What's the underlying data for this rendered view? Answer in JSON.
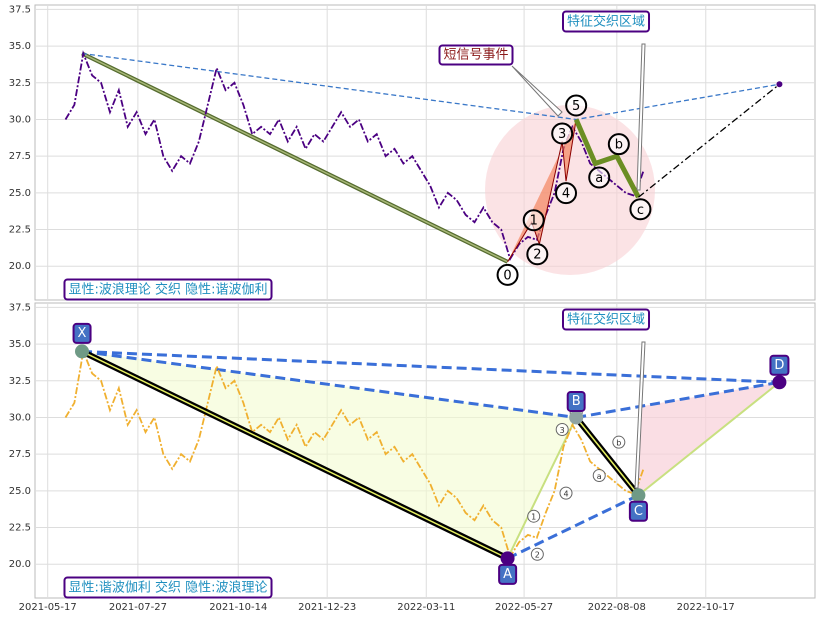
{
  "chart_data": {
    "type": "line",
    "x": [
      "2021-05-31",
      "2021-06-07",
      "2021-06-14",
      "2021-06-21",
      "2021-06-28",
      "2021-07-05",
      "2021-07-12",
      "2021-07-19",
      "2021-07-26",
      "2021-08-02",
      "2021-08-09",
      "2021-08-16",
      "2021-08-23",
      "2021-08-30",
      "2021-09-06",
      "2021-09-13",
      "2021-09-20",
      "2021-09-27",
      "2021-10-04",
      "2021-10-11",
      "2021-10-18",
      "2021-10-25",
      "2021-11-01",
      "2021-11-08",
      "2021-11-15",
      "2021-11-22",
      "2021-11-29",
      "2021-12-06",
      "2021-12-13",
      "2021-12-20",
      "2021-12-27",
      "2022-01-03",
      "2022-01-10",
      "2022-01-17",
      "2022-01-24",
      "2022-01-31",
      "2022-02-07",
      "2022-02-14",
      "2022-02-21",
      "2022-02-28",
      "2022-03-07",
      "2022-03-14",
      "2022-03-21",
      "2022-03-28",
      "2022-04-04",
      "2022-04-11",
      "2022-04-18",
      "2022-04-25",
      "2022-05-02",
      "2022-05-09",
      "2022-05-16",
      "2022-05-23",
      "2022-05-30",
      "2022-06-06",
      "2022-06-13",
      "2022-06-20",
      "2022-06-27",
      "2022-07-04",
      "2022-07-11",
      "2022-07-18",
      "2022-07-25",
      "2022-08-01",
      "2022-08-08",
      "2022-08-15",
      "2022-08-22",
      "2022-08-29"
    ],
    "values": [
      30.0,
      31.0,
      34.5,
      33.0,
      32.5,
      30.5,
      32.0,
      29.5,
      30.5,
      29.0,
      30.0,
      27.5,
      26.5,
      27.5,
      27.0,
      28.5,
      31.0,
      33.5,
      32.0,
      32.5,
      31.0,
      29.0,
      29.5,
      29.0,
      30.0,
      28.5,
      29.5,
      28.0,
      29.0,
      28.5,
      29.5,
      30.5,
      29.5,
      30.0,
      28.5,
      29.0,
      27.5,
      28.0,
      27.0,
      27.5,
      26.5,
      25.5,
      24.0,
      25.0,
      24.5,
      23.5,
      23.0,
      24.0,
      23.0,
      22.5,
      20.5,
      21.5,
      22.0,
      21.8,
      23.5,
      25.0,
      28.0,
      29.5,
      28.5,
      27.0,
      26.5,
      26.0,
      25.5,
      25.0,
      24.8,
      26.5
    ],
    "xlim": [
      "2021-05-07",
      "2023-01-11"
    ],
    "xticks": [
      "2021-05-17",
      "2021-07-27",
      "2021-10-14",
      "2021-12-23",
      "2022-03-11",
      "2022-05-27",
      "2022-08-08",
      "2022-10-17"
    ],
    "ylim": [
      17.7,
      37.8
    ],
    "yticks": [
      {
        "value": 20,
        "label": "20.0"
      },
      {
        "value": 22.5,
        "label": "22.5"
      },
      {
        "value": 25,
        "label": "25.0"
      },
      {
        "value": 27.5,
        "label": "27.5"
      },
      {
        "value": 30,
        "label": "30.0"
      },
      {
        "value": 32.5,
        "label": "32.5"
      },
      {
        "value": 35,
        "label": "35.0"
      },
      {
        "value": 37.5,
        "label": "37.5"
      }
    ],
    "grid": true,
    "waves": [
      {
        "label": "0",
        "x": "2022-05-14",
        "y": 20.3
      },
      {
        "label": "1",
        "x": "2022-06-02",
        "y": 23.0
      },
      {
        "label": "2",
        "x": "2022-06-08",
        "y": 21.5
      },
      {
        "label": "3",
        "x": "2022-06-26",
        "y": 28.5
      },
      {
        "label": "4",
        "x": "2022-06-29",
        "y": 25.8
      },
      {
        "label": "5",
        "x": "2022-07-07",
        "y": 30.0
      },
      {
        "label": "a",
        "x": "2022-07-22",
        "y": 27.0
      },
      {
        "label": "b",
        "x": "2022-08-08",
        "y": 27.5
      },
      {
        "label": "c",
        "x": "2022-08-25",
        "y": 24.7
      }
    ],
    "harmonic": [
      {
        "label": "X",
        "x": "2021-06-13",
        "y": 34.5
      },
      {
        "label": "A",
        "x": "2022-05-14",
        "y": 20.4
      },
      {
        "label": "B",
        "x": "2022-07-07",
        "y": 30.0
      },
      {
        "label": "C",
        "x": "2022-08-25",
        "y": 24.7
      },
      {
        "label": "D",
        "x": "2022-12-14",
        "y": 32.4
      }
    ],
    "panels": [
      {
        "color": "#4b0082",
        "caption": "显性:波浪理论 交织 隐性:谐波伽利",
        "zone_label": "特征交织区域",
        "event_label": "短信号事件"
      },
      {
        "color": "#f0b030",
        "caption": "显性:谐波伽利 交织 隐性:波浪理论",
        "zone_label": "特征交织区域"
      }
    ]
  }
}
